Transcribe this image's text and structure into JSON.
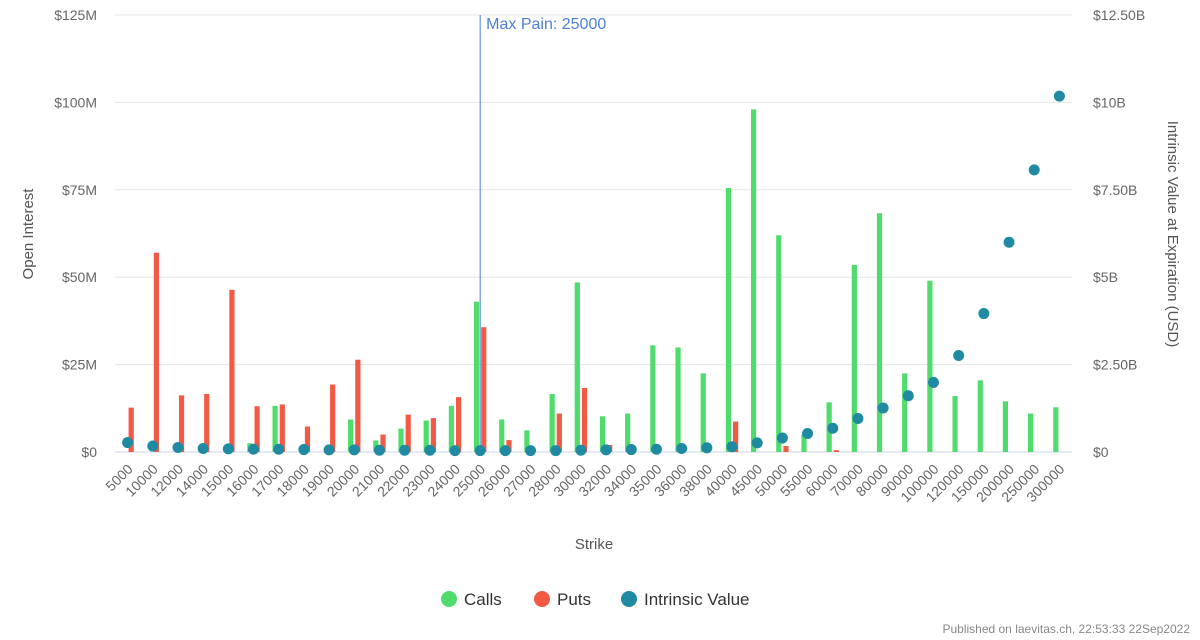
{
  "chart_data": {
    "type": "bar",
    "categories": [
      "5000",
      "10000",
      "12000",
      "14000",
      "15000",
      "16000",
      "17000",
      "18000",
      "19000",
      "20000",
      "21000",
      "22000",
      "23000",
      "24000",
      "25000",
      "26000",
      "27000",
      "28000",
      "30000",
      "32000",
      "34000",
      "35000",
      "36000",
      "38000",
      "40000",
      "45000",
      "50000",
      "55000",
      "60000",
      "70000",
      "80000",
      "90000",
      "100000",
      "120000",
      "150000",
      "200000",
      "250000",
      "300000"
    ],
    "xlabel": "Strike",
    "ylabel_left": "Open Interest",
    "ylabel_right": "Intrinsic Value at Expiration (USD)",
    "yaxis_left": {
      "min": 0,
      "max": 125000000,
      "ticks": [
        0,
        25000000,
        50000000,
        75000000,
        100000000,
        125000000
      ],
      "tick_labels": [
        "$0",
        "$25M",
        "$50M",
        "$75M",
        "$100M",
        "$125M"
      ]
    },
    "yaxis_right": {
      "min": 0,
      "max": 12500000000,
      "ticks": [
        0,
        2500000000,
        5000000000,
        7500000000,
        10000000000,
        12500000000
      ],
      "tick_labels": [
        "$0",
        "$2.50B",
        "$5B",
        "$7.50B",
        "$10B",
        "$12.50B"
      ]
    },
    "grid": "horizontal",
    "legend_position": "bottom-center",
    "series": [
      {
        "name": "Calls",
        "kind": "bar",
        "axis": "left",
        "color": "#4fdc6c",
        "values": [
          0,
          0,
          0,
          0,
          0,
          2500000,
          13200000,
          0,
          0,
          9300000,
          3300000,
          6700000,
          9000000,
          13200000,
          43000000,
          9300000,
          6200000,
          16600000,
          48500000,
          10200000,
          11000000,
          30500000,
          29900000,
          22500000,
          75500000,
          98000000,
          62000000,
          5000000,
          14200000,
          53500000,
          68300000,
          22500000,
          49000000,
          16000000,
          20500000,
          14500000,
          11000000,
          12800000
        ]
      },
      {
        "name": "Puts",
        "kind": "bar",
        "axis": "left",
        "color": "#f25a44",
        "values": [
          12700000,
          57000000,
          16200000,
          16600000,
          46400000,
          13100000,
          13600000,
          7300000,
          19300000,
          26400000,
          5000000,
          10700000,
          9700000,
          15700000,
          35700000,
          3400000,
          0,
          11000000,
          18300000,
          2000000,
          0,
          0,
          0,
          0,
          8700000,
          0,
          1700000,
          0,
          500000,
          0,
          0,
          0,
          0,
          0,
          0,
          0,
          0,
          0
        ]
      },
      {
        "name": "Intrinsic Value",
        "kind": "scatter",
        "axis": "right",
        "color": "#1f8aa1",
        "values": [
          270000000,
          170000000,
          130000000,
          100000000,
          90000000,
          80000000,
          80000000,
          70000000,
          60000000,
          60000000,
          50000000,
          50000000,
          50000000,
          40000000,
          40000000,
          40000000,
          40000000,
          40000000,
          50000000,
          60000000,
          70000000,
          80000000,
          100000000,
          120000000,
          150000000,
          260000000,
          400000000,
          530000000,
          680000000,
          960000000,
          1260000000,
          1610000000,
          1990000000,
          2760000000,
          3960000000,
          6000000000,
          8070000000,
          10180000000
        ]
      }
    ],
    "annotations": [
      {
        "type": "vertical-line",
        "x": "25000",
        "label": "Max Pain: 25000",
        "color": "#4e7fd6"
      }
    ]
  },
  "credit": "Published on laevitas.ch, 22:53:33 22Sep2022"
}
